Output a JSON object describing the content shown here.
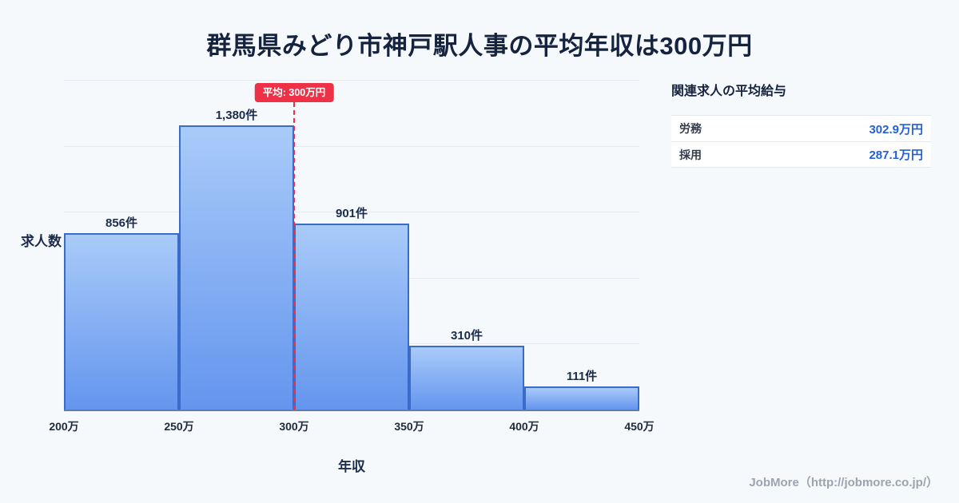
{
  "title": "群馬県みどり市神戸駅人事の平均年収は300万円",
  "chart_data": {
    "type": "bar",
    "title": "群馬県みどり市神戸駅人事の平均年収は300万円",
    "categories": [
      "200万-250万",
      "250万-300万",
      "300万-350万",
      "350万-400万",
      "400万-450万"
    ],
    "values": [
      856,
      1380,
      901,
      310,
      111
    ],
    "bar_labels": [
      "856件",
      "1,380件",
      "901件",
      "310件",
      "111件"
    ],
    "x_ticks": [
      "200万",
      "250万",
      "300万",
      "350万",
      "400万",
      "450万"
    ],
    "xlabel": "年収",
    "ylabel": "求人数",
    "ylim": [
      0,
      1600
    ],
    "grid": true,
    "legend": "none",
    "average_line": {
      "x": "300万",
      "label": "平均: 300万円"
    }
  },
  "side_panel": {
    "heading": "関連求人の平均給与",
    "rows": [
      {
        "label": "労務",
        "value": "302.9万円"
      },
      {
        "label": "採用",
        "value": "287.1万円"
      }
    ]
  },
  "footer": {
    "text": "JobMore（http://jobmore.co.jp/）"
  },
  "colors": {
    "page_bg": "#f6f9fc",
    "title_text": "#16233f",
    "bar_fill_top": "#a9cbf9",
    "bar_fill_bottom": "#6495ee",
    "bar_border": "#3a6bc9",
    "average_line": "#ee3147",
    "value_text": "#2360d8",
    "grid_color": "#e4e9ef"
  }
}
